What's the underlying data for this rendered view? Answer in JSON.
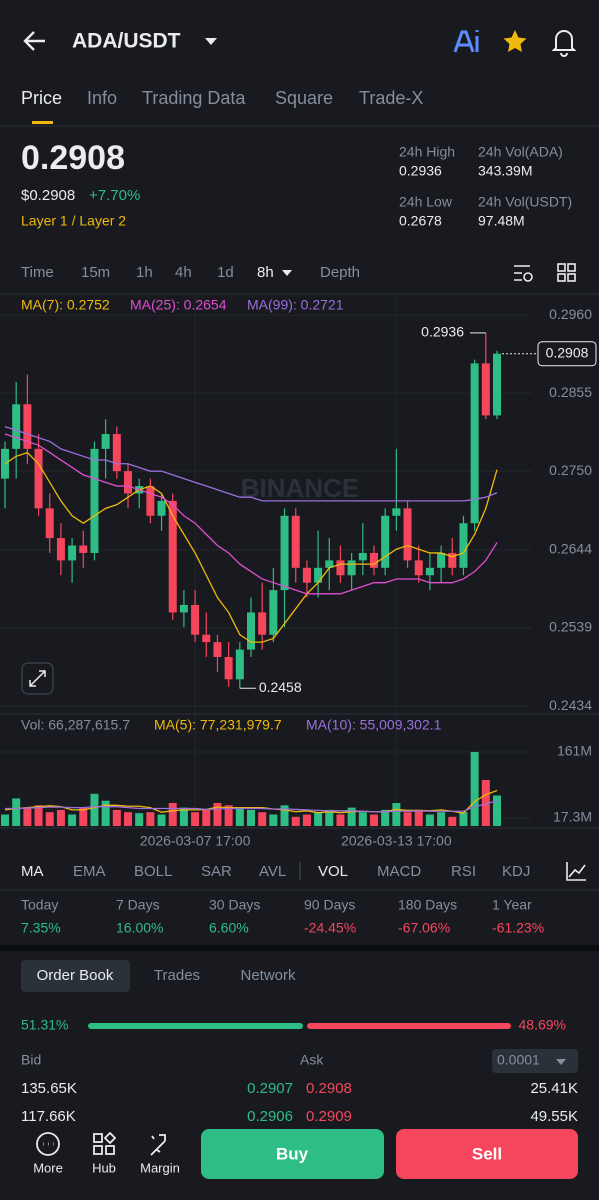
{
  "header": {
    "pair": "ADA/USDT"
  },
  "tabs": [
    "Price",
    "Info",
    "Trading Data",
    "Square",
    "Trade-X"
  ],
  "ticker": {
    "last": "0.2908",
    "usd": "$0.2908",
    "change": "+7.70%",
    "tag": "Layer 1 / Layer 2",
    "stats": [
      {
        "label": "24h High",
        "value": "0.2936"
      },
      {
        "label": "24h Vol(ADA)",
        "value": "343.39M"
      },
      {
        "label": "24h Low",
        "value": "0.2678"
      },
      {
        "label": "24h Vol(USDT)",
        "value": "97.48M"
      }
    ]
  },
  "intervals": [
    "Time",
    "15m",
    "1h",
    "4h",
    "1d",
    "8h",
    "Depth"
  ],
  "chart_data": [
    {
      "type": "candlestick",
      "watermark": "BINANCE",
      "up_color": "#2ebd85",
      "down_color": "#f6465d",
      "categories": [
        null,
        null,
        null,
        null,
        null,
        null,
        null,
        null,
        null,
        null,
        null,
        null,
        null,
        null,
        null,
        null,
        null,
        "2026-03-07 17:00",
        null,
        null,
        null,
        null,
        null,
        null,
        null,
        null,
        null,
        null,
        null,
        null,
        null,
        null,
        null,
        null,
        null,
        "2026-03-13 17:00",
        null,
        null,
        null,
        null,
        null,
        null,
        null,
        null,
        null
      ],
      "open": [
        0.274,
        0.278,
        0.284,
        0.278,
        0.27,
        0.266,
        0.263,
        0.265,
        0.264,
        0.278,
        0.28,
        0.275,
        0.272,
        0.273,
        0.269,
        0.271,
        0.256,
        0.257,
        0.253,
        0.252,
        0.25,
        0.247,
        0.251,
        0.256,
        0.253,
        0.259,
        0.269,
        0.262,
        0.26,
        0.262,
        0.263,
        0.261,
        0.263,
        0.264,
        0.262,
        0.269,
        0.27,
        0.263,
        0.261,
        0.262,
        0.264,
        0.262,
        0.268,
        0.2895,
        0.2825
      ],
      "high": [
        0.279,
        0.287,
        0.288,
        0.28,
        0.272,
        0.268,
        0.266,
        0.267,
        0.279,
        0.282,
        0.281,
        0.276,
        0.274,
        0.274,
        0.272,
        0.272,
        0.259,
        0.259,
        0.256,
        0.253,
        0.252,
        0.252,
        0.258,
        0.26,
        0.262,
        0.27,
        0.27,
        0.263,
        0.267,
        0.266,
        0.265,
        0.264,
        0.268,
        0.265,
        0.27,
        0.278,
        0.271,
        0.265,
        0.264,
        0.265,
        0.266,
        0.269,
        0.29,
        0.2936,
        0.2912
      ],
      "low": [
        0.27,
        0.274,
        0.276,
        0.269,
        0.264,
        0.261,
        0.26,
        0.262,
        0.263,
        0.274,
        0.274,
        0.27,
        0.27,
        0.268,
        0.267,
        0.255,
        0.254,
        0.252,
        0.25,
        0.248,
        0.246,
        0.2458,
        0.25,
        0.251,
        0.252,
        0.254,
        0.26,
        0.258,
        0.258,
        0.259,
        0.26,
        0.259,
        0.261,
        0.261,
        0.261,
        0.267,
        0.262,
        0.26,
        0.259,
        0.26,
        0.261,
        0.261,
        0.267,
        0.282,
        0.282
      ],
      "close": [
        0.278,
        0.284,
        0.278,
        0.27,
        0.266,
        0.263,
        0.265,
        0.264,
        0.278,
        0.28,
        0.275,
        0.272,
        0.273,
        0.269,
        0.271,
        0.256,
        0.257,
        0.253,
        0.252,
        0.25,
        0.247,
        0.251,
        0.256,
        0.253,
        0.259,
        0.269,
        0.262,
        0.26,
        0.262,
        0.263,
        0.261,
        0.263,
        0.264,
        0.262,
        0.269,
        0.27,
        0.263,
        0.261,
        0.262,
        0.264,
        0.262,
        0.268,
        0.2895,
        0.2825,
        0.2908
      ],
      "ma": [
        {
          "name": "MA(7): 0.2752",
          "color": "#f0b90b",
          "values": [
            0.276,
            0.277,
            0.2775,
            0.276,
            0.2735,
            0.271,
            0.269,
            0.268,
            0.269,
            0.27,
            0.2705,
            0.2715,
            0.2725,
            0.273,
            0.272,
            0.269,
            0.2665,
            0.264,
            0.261,
            0.258,
            0.256,
            0.253,
            0.252,
            0.252,
            0.2525,
            0.2545,
            0.2565,
            0.2585,
            0.26,
            0.262,
            0.2625,
            0.2625,
            0.2625,
            0.2625,
            0.2635,
            0.2645,
            0.265,
            0.2645,
            0.264,
            0.264,
            0.2635,
            0.264,
            0.2665,
            0.27,
            0.2752
          ]
        },
        {
          "name": "MA(25): 0.2654",
          "color": "#e04fd0",
          "values": [
            0.28,
            0.2795,
            0.279,
            0.2785,
            0.2775,
            0.2765,
            0.2755,
            0.2745,
            0.274,
            0.2735,
            0.273,
            0.273,
            0.2725,
            0.272,
            0.2715,
            0.2705,
            0.269,
            0.268,
            0.2665,
            0.265,
            0.264,
            0.2625,
            0.2615,
            0.2605,
            0.26,
            0.2595,
            0.259,
            0.2585,
            0.2585,
            0.2585,
            0.2585,
            0.259,
            0.2595,
            0.26,
            0.26,
            0.2605,
            0.2605,
            0.2605,
            0.26,
            0.26,
            0.26,
            0.2605,
            0.2615,
            0.263,
            0.2654
          ]
        },
        {
          "name": "MA(99): 0.2721",
          "color": "#9b6fdc",
          "values": [
            0.281,
            0.2805,
            0.28,
            0.2795,
            0.279,
            0.278,
            0.2775,
            0.277,
            0.2765,
            0.2765,
            0.276,
            0.276,
            0.2755,
            0.275,
            0.275,
            0.2745,
            0.274,
            0.2735,
            0.273,
            0.2725,
            0.272,
            0.2715,
            0.2715,
            0.271,
            0.271,
            0.271,
            0.271,
            0.271,
            0.271,
            0.271,
            0.271,
            0.271,
            0.271,
            0.271,
            0.271,
            0.271,
            0.271,
            0.271,
            0.271,
            0.271,
            0.271,
            0.271,
            0.2712,
            0.2715,
            0.2721
          ]
        }
      ],
      "high_label": "0.2936",
      "low_label": "0.2458",
      "last_label": "0.2908",
      "ylim": [
        0.2422,
        0.2987
      ],
      "yticks": [
        {
          "value": 0.296,
          "label": "0.2960"
        },
        0.2855,
        {
          "value": 0.275,
          "label": "0.2750"
        },
        0.2644,
        0.2539,
        0.2434
      ],
      "grid": true
    },
    {
      "type": "bar",
      "title": "Vol: 66,287,615.7",
      "values": [
        25,
        60,
        40,
        45,
        30,
        35,
        25,
        40,
        70,
        55,
        35,
        30,
        28,
        30,
        25,
        50,
        40,
        30,
        35,
        50,
        45,
        40,
        35,
        30,
        25,
        45,
        20,
        25,
        30,
        35,
        25,
        40,
        30,
        25,
        35,
        50,
        30,
        35,
        25,
        30,
        20,
        30,
        161,
        100,
        66.29
      ],
      "series": [
        {
          "name": "MA(5): 77,231,979.7",
          "color": "#f0b90b",
          "values": [
            35,
            38,
            40,
            42,
            44,
            42,
            35,
            35,
            40,
            45,
            45,
            43,
            43,
            40,
            30,
            33,
            35,
            35,
            36,
            41,
            40,
            40,
            40,
            40,
            37,
            35,
            31,
            33,
            29,
            31,
            29,
            31,
            32,
            31,
            31,
            36,
            34,
            34,
            33,
            35,
            32,
            28,
            53,
            68,
            77.23
          ]
        },
        {
          "name": "MA(10): 55,009,302.1",
          "color": "#9b6fdc",
          "values": [
            38,
            38,
            39,
            40,
            41,
            41,
            40,
            40,
            42,
            42,
            42,
            40,
            38,
            38,
            38,
            38,
            38,
            38,
            36,
            37,
            38,
            38,
            38,
            38,
            37,
            37,
            36,
            35,
            34,
            33,
            33,
            33,
            32,
            31,
            31,
            32,
            32,
            33,
            32,
            32,
            32,
            32,
            42,
            48,
            55.01
          ]
        }
      ],
      "ylim": [
        0,
        187
      ],
      "yticks": [
        {
          "value": 161,
          "label": "161M"
        },
        {
          "value": 17.3,
          "label": "17.3M"
        }
      ]
    }
  ],
  "indicators": [
    "MA",
    "EMA",
    "BOLL",
    "SAR",
    "AVL",
    "VOL",
    "MACD",
    "RSI",
    "KDJ"
  ],
  "performance": [
    {
      "period": "Today",
      "change": "7.35%"
    },
    {
      "period": "7 Days",
      "change": "16.00%"
    },
    {
      "period": "30 Days",
      "change": "6.60%"
    },
    {
      "period": "90 Days",
      "change": "-24.45%"
    },
    {
      "period": "180 Days",
      "change": "-67.06%"
    },
    {
      "period": "1 Year",
      "change": "-61.23%"
    }
  ],
  "order_book": {
    "tabs": [
      "Order Book",
      "Trades",
      "Network"
    ],
    "bid_ratio": {
      "value": 51.31,
      "label": "51.31%"
    },
    "ask_ratio": {
      "value": 48.69,
      "label": "48.69%"
    },
    "bid_label": "Bid",
    "ask_label": "Ask",
    "precision": "0.0001",
    "rows": [
      [
        "135.65K",
        "0.2907",
        "0.2908",
        "25.41K"
      ],
      [
        "117.66K",
        "0.2906",
        "0.2909",
        "49.55K"
      ]
    ]
  },
  "nav": {
    "items": [
      "More",
      "Hub",
      "Margin"
    ],
    "buy": "Buy",
    "sell": "Sell"
  }
}
